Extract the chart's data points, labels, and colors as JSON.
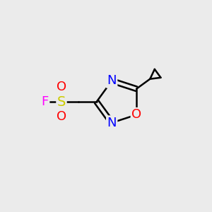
{
  "bg_color": "#ebebeb",
  "bond_color": "#000000",
  "bond_width": 1.8,
  "atom_colors": {
    "C": "#000000",
    "N": "#0000ff",
    "O": "#ff0000",
    "S": "#cccc00",
    "F": "#ff00ff"
  },
  "font_size": 13,
  "rcx": 5.6,
  "rcy": 5.2,
  "rr": 1.05
}
